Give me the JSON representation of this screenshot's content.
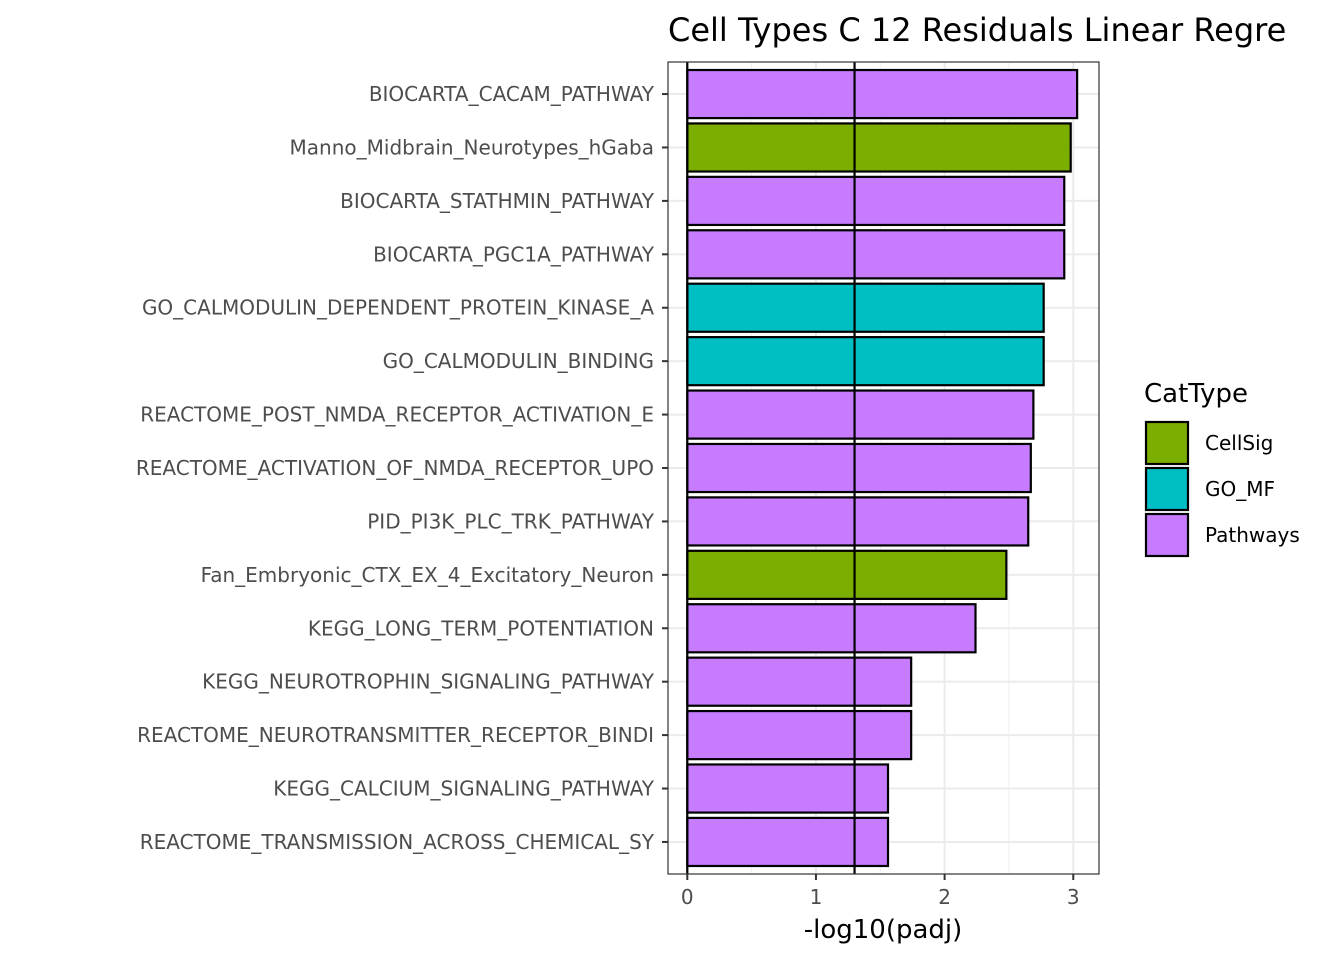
{
  "chart_data": {
    "type": "bar",
    "orientation": "horizontal",
    "title": "Cell Types C 12 Residuals Linear Regre",
    "xlabel": "-log10(padj)",
    "ylabel": "",
    "xlim": [
      -0.15,
      3.2
    ],
    "xticks": [
      0,
      1,
      2,
      3
    ],
    "grid": true,
    "legend_position": "right",
    "legend": {
      "title": "CatType",
      "entries": [
        {
          "label": "CellSig",
          "color": "#7CAE00"
        },
        {
          "label": "GO_MF",
          "color": "#00BFC4"
        },
        {
          "label": "Pathways",
          "color": "#C77CFF"
        }
      ]
    },
    "bars": [
      {
        "label": "BIOCARTA_CACAM_PATHWAY",
        "value": 3.03,
        "category": "Pathways"
      },
      {
        "label": "Manno_Midbrain_Neurotypes_hGaba",
        "value": 2.98,
        "category": "CellSig"
      },
      {
        "label": "BIOCARTA_STATHMIN_PATHWAY",
        "value": 2.93,
        "category": "Pathways"
      },
      {
        "label": "BIOCARTA_PGC1A_PATHWAY",
        "value": 2.93,
        "category": "Pathways"
      },
      {
        "label": "GO_CALMODULIN_DEPENDENT_PROTEIN_KINASE_A",
        "value": 2.77,
        "category": "GO_MF"
      },
      {
        "label": "GO_CALMODULIN_BINDING",
        "value": 2.77,
        "category": "GO_MF"
      },
      {
        "label": "REACTOME_POST_NMDA_RECEPTOR_ACTIVATION_E",
        "value": 2.69,
        "category": "Pathways"
      },
      {
        "label": "REACTOME_ACTIVATION_OF_NMDA_RECEPTOR_UPO",
        "value": 2.67,
        "category": "Pathways"
      },
      {
        "label": "PID_PI3K_PLC_TRK_PATHWAY",
        "value": 2.65,
        "category": "Pathways"
      },
      {
        "label": "Fan_Embryonic_CTX_EX_4_Excitatory_Neuron",
        "value": 2.48,
        "category": "CellSig"
      },
      {
        "label": "KEGG_LONG_TERM_POTENTIATION",
        "value": 2.24,
        "category": "Pathways"
      },
      {
        "label": "KEGG_NEUROTROPHIN_SIGNALING_PATHWAY",
        "value": 1.74,
        "category": "Pathways"
      },
      {
        "label": "REACTOME_NEUROTRANSMITTER_RECEPTOR_BINDI",
        "value": 1.74,
        "category": "Pathways"
      },
      {
        "label": "KEGG_CALCIUM_SIGNALING_PATHWAY",
        "value": 1.56,
        "category": "Pathways"
      },
      {
        "label": "REACTOME_TRANSMISSION_ACROSS_CHEMICAL_SY",
        "value": 1.56,
        "category": "Pathways"
      }
    ],
    "reference_lines_x": [
      0,
      1.3
    ]
  }
}
